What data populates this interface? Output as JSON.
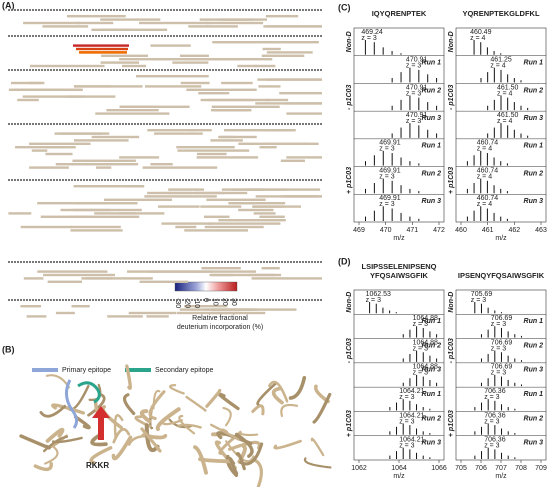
{
  "panel_a": {
    "label": "(A)",
    "colorbar": {
      "ticks": [
        "-30",
        "-20",
        "-10",
        "0",
        "10",
        "20",
        "30"
      ],
      "label_lines": [
        "Relative fractional",
        "deuterium incorporation (%)"
      ]
    }
  },
  "panel_b": {
    "label": "(B)",
    "legend": [
      "Primary epitope",
      "Secondary epitope"
    ],
    "site": "RKKR"
  },
  "row_labels": {
    "non_d": "Non-D",
    "minus": "- p1C03",
    "plus": "+ p1C03",
    "runs": [
      "Run 1",
      "Run 2",
      "Run 3"
    ],
    "xlabel": "m/z"
  },
  "panel_c": {
    "label": "(C)",
    "spectra": [
      {
        "title_lines": [
          "IQYQRENPTEK"
        ],
        "xticks": [
          469,
          470,
          471,
          472
        ],
        "peaks": [
          {
            "label": "469.24",
            "charge": "z = 3"
          },
          {
            "label": "470.91",
            "charge": "z = 3"
          },
          {
            "label": "470.91",
            "charge": "z = 3"
          },
          {
            "label": "470.91",
            "charge": "z = 3"
          },
          {
            "label": "469.91",
            "charge": "z = 3"
          },
          {
            "label": "469.91",
            "charge": "z = 3"
          },
          {
            "label": "469.91",
            "charge": "z = 3"
          }
        ]
      },
      {
        "title_lines": [
          "YQRENPTEKGLDFKL"
        ],
        "xticks": [
          460,
          461,
          462,
          463
        ],
        "peaks": [
          {
            "label": "460.49",
            "charge": "z = 4"
          },
          {
            "label": "461.25",
            "charge": "z = 4"
          },
          {
            "label": "461.50",
            "charge": "z = 4"
          },
          {
            "label": "461.50",
            "charge": "z = 4"
          },
          {
            "label": "460.74",
            "charge": "z = 4"
          },
          {
            "label": "460.74",
            "charge": "z = 4"
          },
          {
            "label": "460.74",
            "charge": "z = 4"
          }
        ]
      }
    ]
  },
  "panel_d": {
    "label": "(D)",
    "spectra": [
      {
        "title_lines": [
          "LSIPSSELENIPSENQ",
          "YFQSAIWSGFIK"
        ],
        "xticks": [
          1062,
          1064,
          1066
        ],
        "peaks": [
          {
            "label": "1062.53",
            "charge": "z = 3"
          },
          {
            "label": "1064.88",
            "charge": "z = 3"
          },
          {
            "label": "1064.88",
            "charge": "z = 3"
          },
          {
            "label": "1064.88",
            "charge": "z = 3"
          },
          {
            "label": "1064.21",
            "charge": "z = 3"
          },
          {
            "label": "1064.21",
            "charge": "z = 3"
          },
          {
            "label": "1064.21",
            "charge": "z = 3"
          }
        ]
      },
      {
        "title_lines": [
          "IPSENQYFQSAIWSGFIK"
        ],
        "xticks": [
          705,
          706,
          707,
          708,
          709
        ],
        "peaks": [
          {
            "label": "705.69",
            "charge": "z = 3"
          },
          {
            "label": "706.69",
            "charge": "z = 3"
          },
          {
            "label": "706.69",
            "charge": "z = 3"
          },
          {
            "label": "706.69",
            "charge": "z = 3"
          },
          {
            "label": "706.36",
            "charge": "z = 3"
          },
          {
            "label": "706.36",
            "charge": "z = 3"
          },
          {
            "label": "706.36",
            "charge": "z = 3"
          }
        ]
      }
    ]
  }
}
